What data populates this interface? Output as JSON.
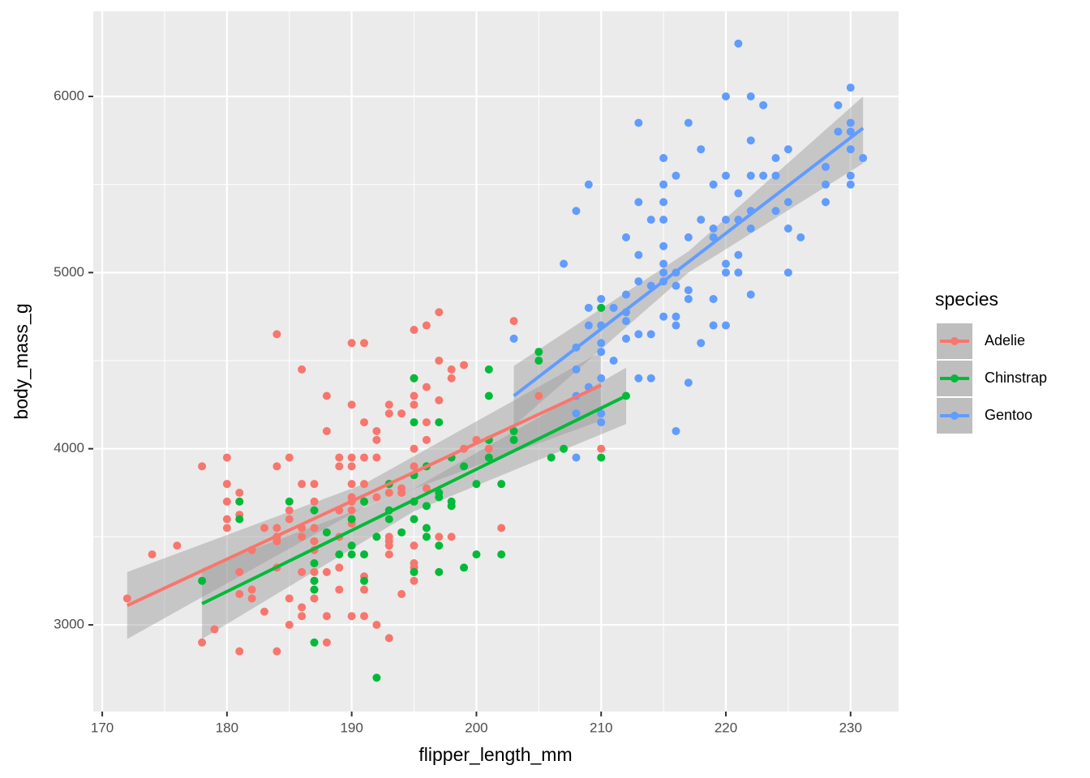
{
  "chart_data": {
    "type": "scatter",
    "x_label": "flipper_length_mm",
    "y_label": "body_mass_g",
    "legend_title": "species",
    "legend": "right",
    "grid": true,
    "xlim": [
      169.28,
      233.85
    ],
    "ylim": [
      2508,
      6483
    ],
    "xticks": [
      170,
      180,
      190,
      200,
      210,
      220,
      230
    ],
    "yticks": [
      3000,
      4000,
      5000,
      6000
    ],
    "x_minor_ticks": [
      175,
      185,
      195,
      205,
      215,
      225
    ],
    "y_minor_ticks": [
      2500,
      3500,
      4500,
      5500
    ],
    "series": [
      {
        "name": "Adelie",
        "color": "#F8766D",
        "x": [
          172,
          174,
          176,
          178,
          178,
          179,
          180,
          180,
          180,
          180,
          180,
          181,
          181,
          181,
          181,
          181,
          182,
          182,
          182,
          183,
          183,
          184,
          184,
          184,
          184,
          184,
          184,
          184,
          185,
          185,
          185,
          185,
          185,
          186,
          186,
          186,
          186,
          186,
          186,
          186,
          187,
          187,
          187,
          187,
          187,
          187,
          187,
          187,
          187,
          188,
          188,
          188,
          188,
          188,
          189,
          189,
          189,
          189,
          189,
          189,
          190,
          190,
          190,
          190,
          190,
          190,
          190,
          190,
          190,
          190,
          190,
          191,
          191,
          191,
          191,
          191,
          191,
          191,
          191,
          192,
          192,
          192,
          192,
          192,
          193,
          193,
          193,
          193,
          193,
          193,
          193,
          193,
          193,
          194,
          194,
          194,
          194,
          195,
          195,
          195,
          195,
          195,
          195,
          195,
          195,
          195,
          195,
          196,
          196,
          196,
          196,
          196,
          196,
          197,
          197,
          197,
          197,
          198,
          198,
          198,
          199,
          199,
          200,
          201,
          202,
          203,
          205,
          210
        ],
        "values": [
          3150,
          3400,
          3450,
          3900,
          2900,
          2975,
          3950,
          3800,
          3700,
          3600,
          3550,
          3750,
          3625,
          3300,
          3175,
          2850,
          3425,
          3200,
          3150,
          3550,
          3075,
          4650,
          3900,
          3550,
          3500,
          3475,
          3325,
          2850,
          3950,
          3650,
          3600,
          3150,
          3000,
          4450,
          3800,
          3550,
          3500,
          3300,
          3100,
          3050,
          3800,
          3700,
          3550,
          3475,
          3425,
          3300,
          3250,
          3200,
          3150,
          4300,
          4100,
          3300,
          3050,
          2900,
          3950,
          3900,
          3650,
          3500,
          3325,
          3200,
          4600,
          4250,
          3950,
          3900,
          3800,
          3725,
          3700,
          3650,
          3575,
          3450,
          3050,
          4600,
          4150,
          3950,
          3800,
          3700,
          3275,
          3050,
          3200,
          4100,
          4050,
          3950,
          3725,
          3000,
          4250,
          4200,
          3800,
          3750,
          3500,
          3475,
          3450,
          3400,
          2925,
          4200,
          3775,
          3750,
          3175,
          4675,
          4400,
          4300,
          4250,
          4000,
          3900,
          3450,
          3350,
          3325,
          3250,
          4700,
          4350,
          4150,
          4050,
          3900,
          3775,
          4775,
          4500,
          4275,
          3500,
          4450,
          4400,
          3500,
          4475,
          4000,
          4050,
          4000,
          3550,
          4725,
          4300,
          4000
        ],
        "fit_x": [
          172,
          191,
          210
        ],
        "fit_y": [
          3110,
          3735,
          4360
        ],
        "fit_lower": [
          2920,
          3670,
          4160
        ],
        "fit_upper": [
          3300,
          3800,
          4550
        ]
      },
      {
        "name": "Chinstrap",
        "color": "#00BA38",
        "x": [
          178,
          181,
          181,
          185,
          187,
          187,
          187,
          187,
          187,
          188,
          189,
          190,
          190,
          190,
          191,
          191,
          191,
          192,
          192,
          193,
          193,
          193,
          194,
          195,
          195,
          195,
          195,
          195,
          195,
          196,
          196,
          196,
          196,
          197,
          197,
          197,
          197,
          197,
          198,
          198,
          198,
          199,
          199,
          200,
          200,
          201,
          201,
          201,
          201,
          202,
          202,
          203,
          203,
          205,
          205,
          206,
          207,
          210,
          210,
          212
        ],
        "values": [
          3250,
          3700,
          3600,
          3700,
          3650,
          3200,
          2900,
          3250,
          3350,
          3525,
          3400,
          3600,
          3450,
          3400,
          3700,
          3400,
          3250,
          3500,
          2700,
          3800,
          3650,
          3600,
          3525,
          4400,
          4150,
          3850,
          3700,
          3600,
          3300,
          3900,
          3675,
          3550,
          3500,
          4150,
          3750,
          3725,
          3450,
          3300,
          3950,
          3700,
          3675,
          3900,
          3325,
          3800,
          3400,
          4450,
          4300,
          4050,
          3950,
          3800,
          3400,
          4100,
          4050,
          4550,
          4500,
          3950,
          4000,
          4800,
          3950,
          4300
        ],
        "fit_x": [
          178,
          195,
          212
        ],
        "fit_y": [
          3120,
          3710,
          4300
        ],
        "fit_lower": [
          2920,
          3645,
          4140
        ],
        "fit_upper": [
          3320,
          3775,
          4460
        ]
      },
      {
        "name": "Gentoo",
        "color": "#619CFF",
        "x": [
          203,
          207,
          208,
          208,
          208,
          208,
          208,
          208,
          209,
          209,
          209,
          209,
          210,
          210,
          210,
          210,
          210,
          210,
          210,
          211,
          211,
          212,
          212,
          212,
          212,
          212,
          213,
          213,
          213,
          213,
          213,
          213,
          214,
          214,
          214,
          214,
          215,
          215,
          215,
          215,
          215,
          215,
          215,
          215,
          215,
          216,
          216,
          216,
          216,
          216,
          216,
          217,
          217,
          217,
          217,
          217,
          218,
          218,
          218,
          219,
          219,
          219,
          219,
          219,
          220,
          220,
          220,
          220,
          220,
          220,
          221,
          221,
          221,
          221,
          221,
          222,
          222,
          222,
          222,
          222,
          222,
          223,
          223,
          224,
          224,
          224,
          225,
          225,
          225,
          225,
          226,
          228,
          228,
          228,
          229,
          229,
          230,
          230,
          230,
          230,
          230,
          230,
          231
        ],
        "values": [
          4625,
          5050,
          5350,
          4575,
          4450,
          4300,
          4200,
          3950,
          5500,
          4800,
          4700,
          4350,
          4850,
          4700,
          4600,
          4550,
          4400,
          4200,
          4150,
          4500,
          4800,
          4775,
          4725,
          4625,
          5200,
          4875,
          5850,
          5400,
          5100,
          4950,
          4650,
          4400,
          5300,
          4925,
          4650,
          4400,
          5650,
          5500,
          5400,
          5300,
          5150,
          5050,
          5000,
          4950,
          4750,
          5550,
          5000,
          4925,
          4750,
          4700,
          4100,
          5850,
          5200,
          4900,
          4850,
          4375,
          5700,
          5300,
          4600,
          5500,
          5250,
          5200,
          4850,
          4700,
          6000,
          5550,
          5300,
          5050,
          5000,
          4700,
          6300,
          5450,
          5300,
          5100,
          5000,
          6000,
          5750,
          5550,
          5350,
          5250,
          4875,
          5950,
          5550,
          5650,
          5550,
          5350,
          5700,
          5400,
          5250,
          5000,
          5200,
          5600,
          5500,
          5400,
          5950,
          5800,
          6050,
          5850,
          5800,
          5700,
          5550,
          5500,
          5650
        ],
        "fit_x": [
          203,
          217,
          231
        ],
        "fit_y": [
          4300,
          5060,
          5820
        ],
        "fit_lower": [
          4130,
          5000,
          5620
        ],
        "fit_upper": [
          4470,
          5120,
          6000
        ]
      }
    ]
  }
}
